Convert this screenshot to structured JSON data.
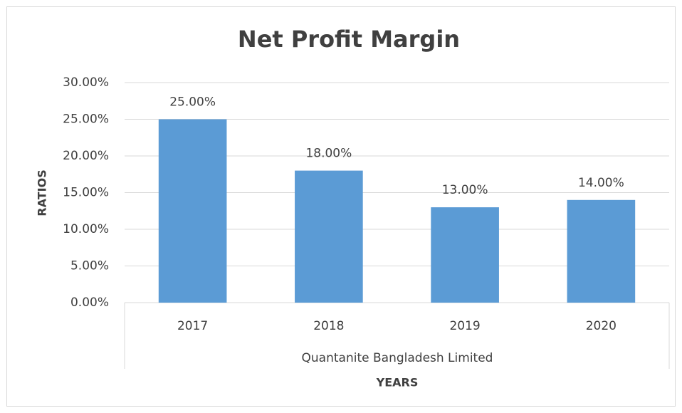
{
  "chart_data": {
    "type": "bar",
    "title": "Net Profit Margin",
    "categories": [
      "2017",
      "2018",
      "2019",
      "2020"
    ],
    "values": [
      25,
      18,
      13,
      14
    ],
    "value_labels": [
      "25.00%",
      "18.00%",
      "13.00%",
      "14.00%"
    ],
    "color": "#5b9bd5",
    "ylim": [
      0,
      30
    ],
    "yticks": [
      {
        "value": 0,
        "label": "0.00%"
      },
      {
        "value": 5,
        "label": "5.00%"
      },
      {
        "value": 10,
        "label": "10.00%"
      },
      {
        "value": 15,
        "label": "15.00%"
      },
      {
        "value": 20,
        "label": "20.00%"
      },
      {
        "value": 25,
        "label": "25.00%"
      },
      {
        "value": 30,
        "label": "30.00%"
      }
    ],
    "grid": true,
    "y_label": "RATIOS",
    "x_label": "YEARS",
    "group_label": "Quantanite Bangladesh Limited"
  }
}
